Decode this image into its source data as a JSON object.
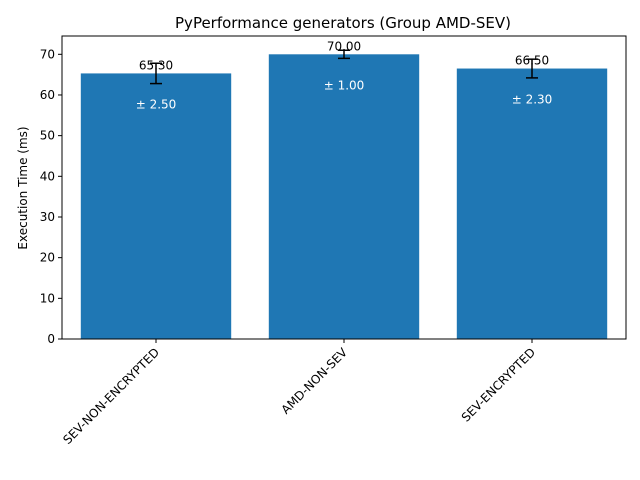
{
  "chart_data": {
    "type": "bar",
    "title": "PyPerformance generators (Group AMD-SEV)",
    "xlabel": "",
    "ylabel": "Execution Time (ms)",
    "categories": [
      "SEV-NON-ENCRYPTED",
      "AMD-NON-SEV",
      "SEV-ENCRYPTED"
    ],
    "values": [
      65.3,
      70.0,
      66.5
    ],
    "errors": [
      2.5,
      1.0,
      2.3
    ],
    "value_labels": [
      "65.30",
      "70.00",
      "66.50"
    ],
    "error_labels": [
      "± 2.50",
      "± 1.00",
      "± 2.30"
    ],
    "ylim": [
      0,
      74.5
    ],
    "yticks": [
      0,
      10,
      20,
      30,
      40,
      50,
      60,
      70
    ],
    "grid": false,
    "bar_color": "#1f77b4",
    "error_bar_color": "#000000"
  }
}
